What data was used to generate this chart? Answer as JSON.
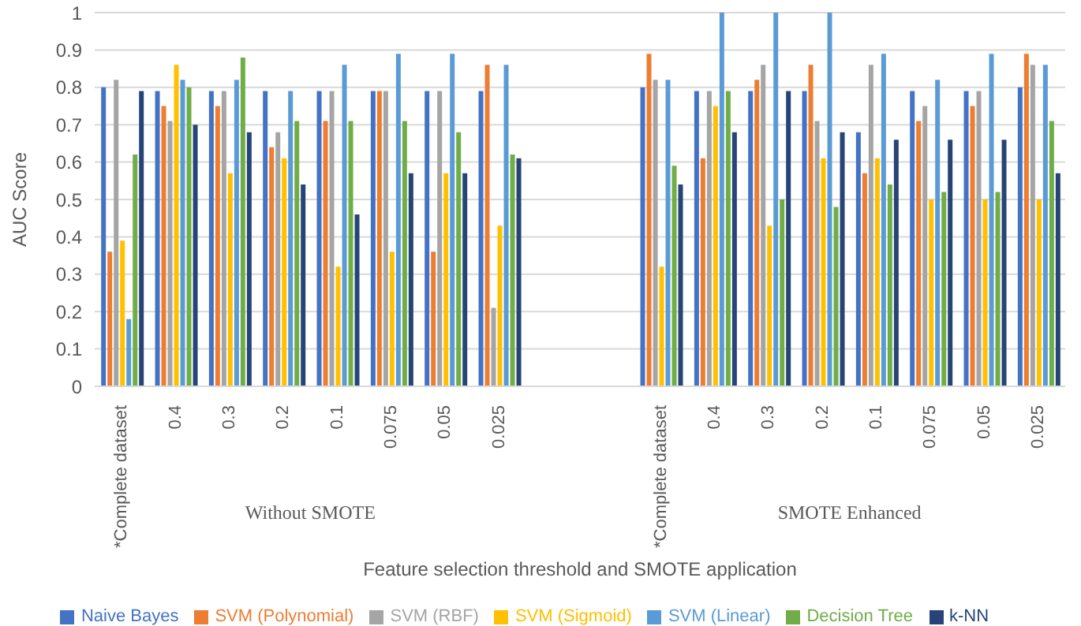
{
  "chart_data": {
    "type": "bar",
    "xlabel": "Feature selection threshold and SMOTE application",
    "ylabel": "AUC Score",
    "categories": [
      "*Complete dataset",
      "0.4",
      "0.3",
      "0.2",
      "0.1",
      "0.075",
      "0.05",
      "0.025",
      null,
      null,
      "*Complete dataset",
      "0.4",
      "0.3",
      "0.2",
      "0.1",
      "0.075",
      "0.05",
      "0.025"
    ],
    "series": [
      {
        "name": "Naive Bayes",
        "color": "#4472c4",
        "values": [
          0.8,
          0.79,
          0.79,
          0.79,
          0.79,
          0.79,
          0.79,
          0.79,
          null,
          null,
          0.8,
          0.79,
          0.79,
          0.79,
          0.68,
          0.79,
          0.79,
          0.8
        ]
      },
      {
        "name": "SVM (Polynomial)",
        "color": "#ed7d31",
        "values": [
          0.36,
          0.75,
          0.75,
          0.64,
          0.71,
          0.79,
          0.36,
          0.86,
          null,
          null,
          0.89,
          0.61,
          0.82,
          0.86,
          0.57,
          0.71,
          0.75,
          0.89
        ]
      },
      {
        "name": "SVM (RBF)",
        "color": "#a5a5a5",
        "values": [
          0.82,
          0.71,
          0.79,
          0.68,
          0.79,
          0.79,
          0.79,
          0.21,
          null,
          null,
          0.82,
          0.79,
          0.86,
          0.71,
          0.86,
          0.75,
          0.79,
          0.86
        ]
      },
      {
        "name": "SVM (Sigmoid)",
        "color": "#ffc000",
        "values": [
          0.39,
          0.86,
          0.57,
          0.61,
          0.32,
          0.36,
          0.57,
          0.43,
          null,
          null,
          0.32,
          0.75,
          0.43,
          0.61,
          0.61,
          0.5,
          0.5,
          0.5
        ]
      },
      {
        "name": "SVM (Linear)",
        "color": "#5b9bd5",
        "values": [
          0.18,
          0.82,
          0.82,
          0.79,
          0.86,
          0.89,
          0.89,
          0.86,
          null,
          null,
          0.82,
          1,
          1,
          1,
          0.89,
          0.82,
          0.89,
          0.86
        ]
      },
      {
        "name": "Decision Tree",
        "color": "#70ad47",
        "values": [
          0.62,
          0.8,
          0.88,
          0.71,
          0.71,
          0.71,
          0.68,
          0.62,
          null,
          null,
          0.59,
          0.79,
          0.5,
          0.48,
          0.54,
          0.52,
          0.52,
          0.71
        ]
      },
      {
        "name": "k-NN",
        "color": "#264478",
        "values": [
          0.79,
          0.7,
          0.68,
          0.54,
          0.46,
          0.57,
          0.57,
          0.61,
          null,
          null,
          0.54,
          0.68,
          0.79,
          0.68,
          0.66,
          0.66,
          0.66,
          0.57
        ]
      }
    ],
    "ylim": [
      0,
      1
    ],
    "yticks": [
      0,
      0.1,
      0.2,
      0.3,
      0.4,
      0.5,
      0.6,
      0.7,
      0.8,
      0.9,
      1
    ],
    "grid": "y",
    "legend": "bottom",
    "annotations": [
      "Without SMOTE",
      "SMOTE Enhanced"
    ]
  }
}
